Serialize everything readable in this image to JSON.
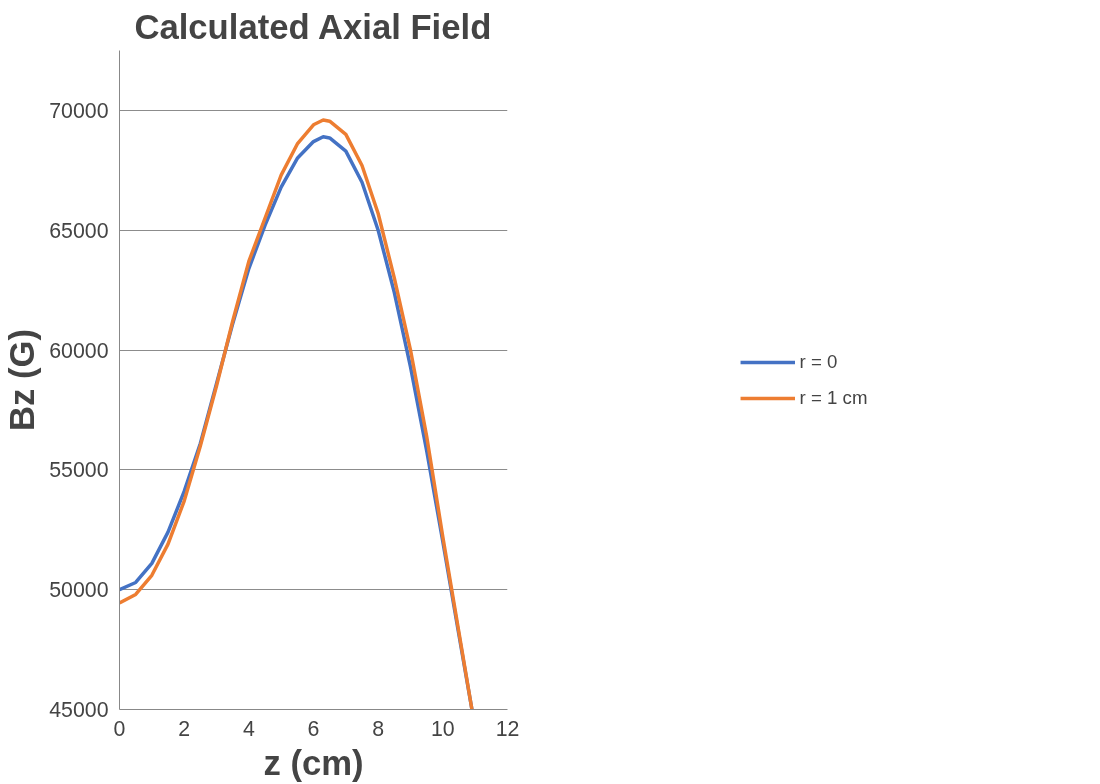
{
  "chart_data": {
    "type": "line",
    "title": "Calculated Axial Field",
    "xlabel": "z (cm)",
    "ylabel": "Bz (G)",
    "xlim": [
      0,
      12
    ],
    "xticks": [
      0,
      2,
      4,
      6,
      8,
      10,
      12
    ],
    "ylim": [
      45000,
      72500
    ],
    "yticks": [
      45000,
      50000,
      55000,
      60000,
      65000,
      70000
    ],
    "grid": "y",
    "legend": "right",
    "marker": "none",
    "line_style": "solid",
    "series": [
      {
        "name": "r = 0",
        "color": "#4472c4",
        "x": [
          0,
          0.5,
          1,
          1.5,
          2,
          2.5,
          3,
          3.5,
          4,
          4.5,
          5,
          5.5,
          6,
          6.3,
          6.5,
          7,
          7.5,
          8,
          8.5,
          9,
          9.5,
          10,
          10.5,
          10.9
        ],
        "values": [
          50000,
          50300,
          51100,
          52400,
          54100,
          56100,
          58600,
          61100,
          63400,
          65200,
          66800,
          68000,
          68700,
          68900,
          68850,
          68300,
          67000,
          65000,
          62400,
          59300,
          55800,
          52000,
          48100,
          45000
        ]
      },
      {
        "name": "r = 1 cm",
        "color": "#ed7d31",
        "x": [
          0,
          0.5,
          1,
          1.5,
          2,
          2.5,
          3,
          3.5,
          4,
          4.5,
          5,
          5.5,
          6,
          6.3,
          6.5,
          7,
          7.5,
          8,
          8.5,
          9,
          9.5,
          10,
          10.5,
          10.9
        ],
        "values": [
          49450,
          49800,
          50600,
          51900,
          53700,
          56000,
          58500,
          61200,
          63700,
          65500,
          67300,
          68600,
          69400,
          69600,
          69550,
          69000,
          67700,
          65700,
          63000,
          60000,
          56400,
          52200,
          48200,
          45000
        ]
      }
    ]
  }
}
